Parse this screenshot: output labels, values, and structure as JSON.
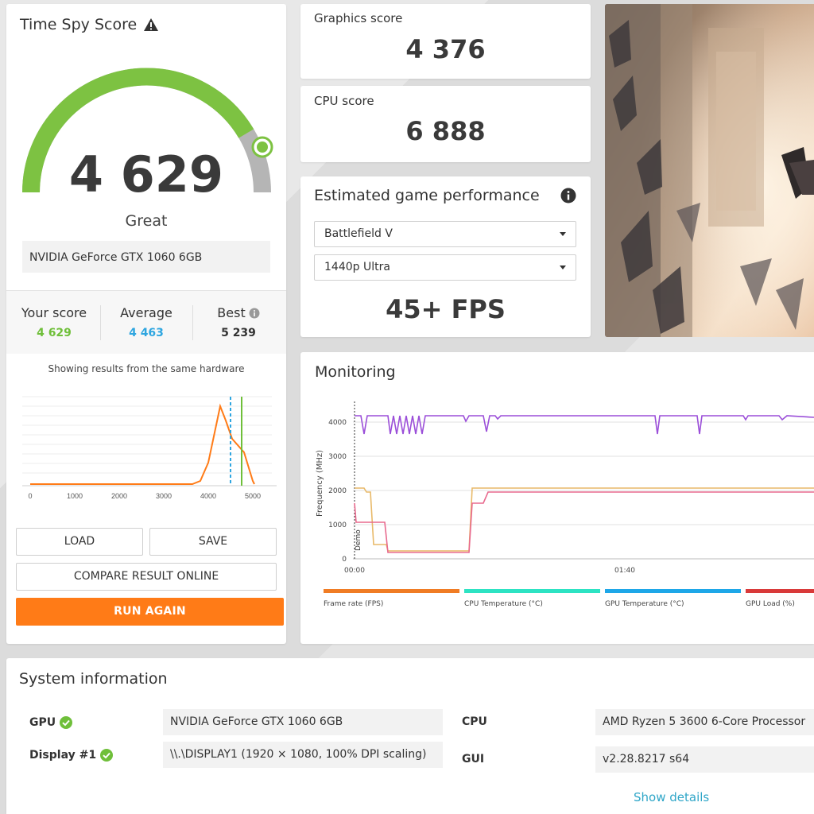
{
  "score_panel": {
    "title": "Time Spy Score",
    "score": "4 629",
    "rating": "Great",
    "gpu_name": "NVIDIA GeForce GTX 1060 6GB",
    "gauge_fill_fraction": 0.83,
    "your_score": {
      "label": "Your score",
      "value": "4 629"
    },
    "average": {
      "label": "Average",
      "value": "4 463"
    },
    "best": {
      "label": "Best",
      "value": "5 239"
    },
    "histogram_caption": "Showing results from the same hardware",
    "histogram_ticks": [
      "0",
      "1000",
      "2000",
      "3000",
      "4000",
      "5000"
    ],
    "buttons": {
      "load": "LOAD",
      "save": "SAVE",
      "compare": "COMPARE RESULT ONLINE",
      "run_again": "RUN AGAIN"
    }
  },
  "graphics": {
    "title": "Graphics score",
    "score": "4 376"
  },
  "cpu": {
    "title": "CPU score",
    "score": "6 888"
  },
  "estimated": {
    "title": "Estimated game performance",
    "game": "Battlefield V",
    "preset": "1440p Ultra",
    "fps": "45+ FPS"
  },
  "monitoring": {
    "title": "Monitoring",
    "y_axis_label": "Frequency (MHz)",
    "y_ticks": [
      "4000",
      "3000",
      "2000",
      "1000",
      "0"
    ],
    "x_ticks": [
      "00:00",
      "01:40"
    ],
    "marker_label": "Demo",
    "legend": [
      "Frame rate (FPS)",
      "CPU Temperature (°C)",
      "GPU Temperature (°C)",
      "GPU Load (%)"
    ]
  },
  "system_info": {
    "title": "System information",
    "gpu_label": "GPU",
    "gpu_value": "NVIDIA GeForce GTX 1060 6GB",
    "display_label": "Display #1",
    "display_value": "\\\\.\\DISPLAY1 (1920 × 1080, 100% DPI scaling)",
    "cpu_label": "CPU",
    "cpu_value": "AMD Ryzen 5 3600 6-Core Processor",
    "gui_label": "GUI",
    "gui_value": "v2.28.8217 s64",
    "show_details": "Show details"
  },
  "colors": {
    "accent_orange": "#ff7b17",
    "gauge_green": "#7dc242",
    "average_blue": "#2fa6e0",
    "check_green": "#6fbf3a",
    "link_blue": "#2fa6c8"
  }
}
